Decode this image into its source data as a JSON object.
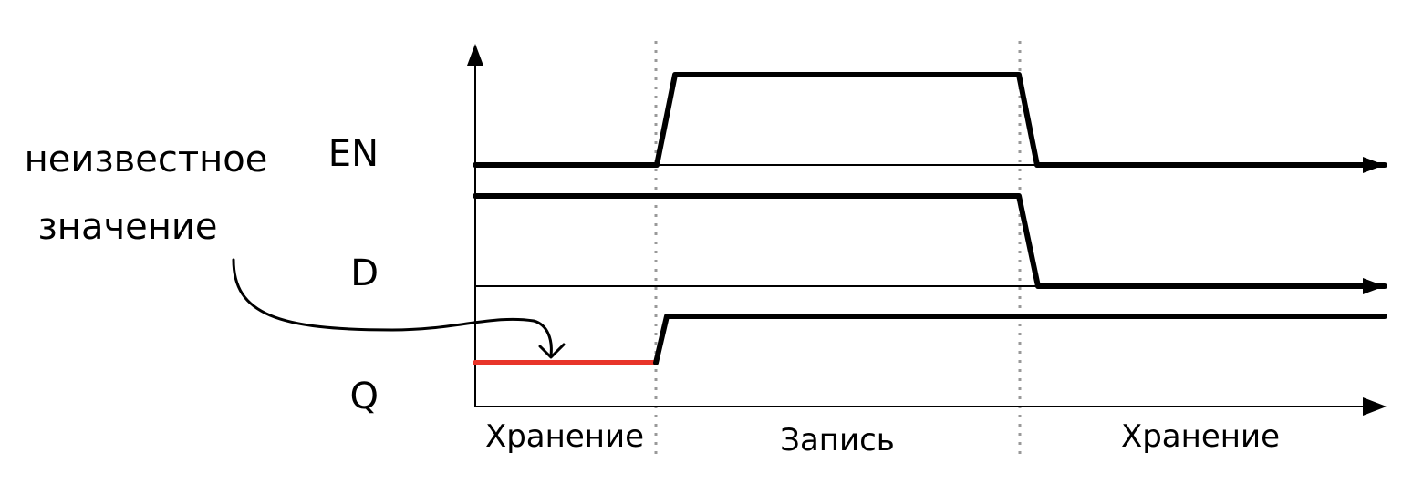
{
  "signals": {
    "en_label": "EN",
    "d_label": "D",
    "q_label": "Q"
  },
  "phases": {
    "left": "Хранение",
    "middle": "Запись",
    "right": "Хранение"
  },
  "annotation": {
    "line1": "неизвестное",
    "line2": "значение"
  },
  "colors": {
    "waveform": "#000000",
    "unknown": "#e8352a",
    "divider": "#999999"
  }
}
